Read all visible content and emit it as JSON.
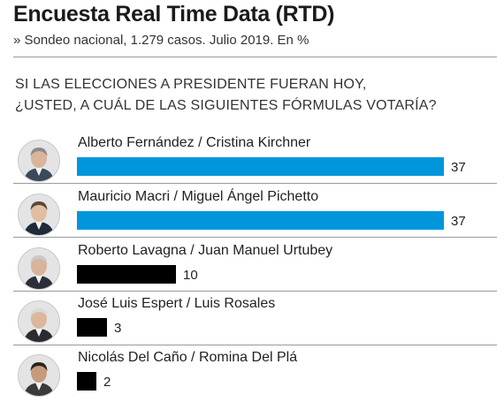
{
  "header": {
    "title": "Encuesta Real Time Data (RTD)",
    "subtitle": "» Sondeo nacional, 1.279 casos. Julio 2019. En %"
  },
  "question": {
    "line1": "SI LAS ELECCIONES A PRESIDENTE FUERAN HOY,",
    "line2": "¿USTED, A CUÁL DE LAS SIGUIENTES FÓRMULAS VOTARÍA?"
  },
  "colors": {
    "leading": "#0096db",
    "other": "#000000"
  },
  "chart_data": {
    "type": "bar",
    "orientation": "horizontal",
    "categories": [
      "Alberto Fernández / Cristina Kirchner",
      "Mauricio Macri / Miguel Ángel Pichetto",
      "Roberto Lavagna / Juan Manuel Urtubey",
      "José Luis Espert / Luis Rosales",
      "Nicolás Del Caño / Romina Del Plá"
    ],
    "values": [
      37,
      37,
      10,
      3,
      2
    ],
    "bar_colors": [
      "#0096db",
      "#0096db",
      "#000000",
      "#000000",
      "#000000"
    ],
    "xlim": [
      0,
      37
    ],
    "grid": false
  }
}
